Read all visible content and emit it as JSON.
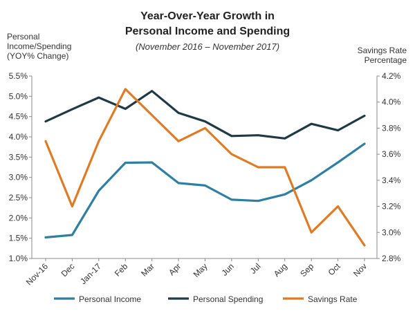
{
  "chart_data": {
    "type": "line",
    "title_line1": "Year-Over-Year Growth in",
    "title_line2": "Personal Income and Spending",
    "subtitle": "(November 2016 – November 2017)",
    "ylabel_left_lines": [
      "Personal",
      "Income/Spending",
      "(YOY% Change)"
    ],
    "ylabel_right_lines": [
      "Savings Rate",
      "Percentage"
    ],
    "categories": [
      "Nov-16",
      "Dec",
      "Jan-17",
      "Feb",
      "Mar",
      "Apr",
      "May",
      "Jun",
      "Jul",
      "Aug",
      "Sep",
      "Oct",
      "Nov"
    ],
    "left_axis": {
      "min": 1.0,
      "max": 5.5,
      "step": 0.5,
      "tick_labels": [
        "1.0%",
        "1.5%",
        "2.0%",
        "2.5%",
        "3.0%",
        "3.5%",
        "4.0%",
        "4.5%",
        "5.0%",
        "5.5%"
      ]
    },
    "right_axis": {
      "min": 2.8,
      "max": 4.2,
      "step": 0.2,
      "tick_labels": [
        "2.8%",
        "3.0%",
        "3.2%",
        "3.4%",
        "3.6%",
        "3.8%",
        "4.0%",
        "4.2%"
      ]
    },
    "series": [
      {
        "name": "Personal Income",
        "axis": "left",
        "color": "#2e7fa1",
        "values": [
          1.52,
          1.58,
          2.67,
          3.36,
          3.37,
          2.86,
          2.8,
          2.45,
          2.42,
          2.58,
          2.93,
          3.37,
          3.83
        ]
      },
      {
        "name": "Personal Spending",
        "axis": "left",
        "color": "#1f3a44",
        "values": [
          4.38,
          4.68,
          4.97,
          4.69,
          5.13,
          4.59,
          4.38,
          4.02,
          4.04,
          3.96,
          4.32,
          4.16,
          4.52
        ]
      },
      {
        "name": "Savings Rate",
        "axis": "right",
        "color": "#e07b25",
        "values": [
          3.7,
          3.2,
          3.7,
          4.1,
          3.9,
          3.7,
          3.8,
          3.6,
          3.5,
          3.5,
          3.0,
          3.2,
          2.9
        ]
      }
    ],
    "legend_position": "bottom",
    "grid": false
  }
}
